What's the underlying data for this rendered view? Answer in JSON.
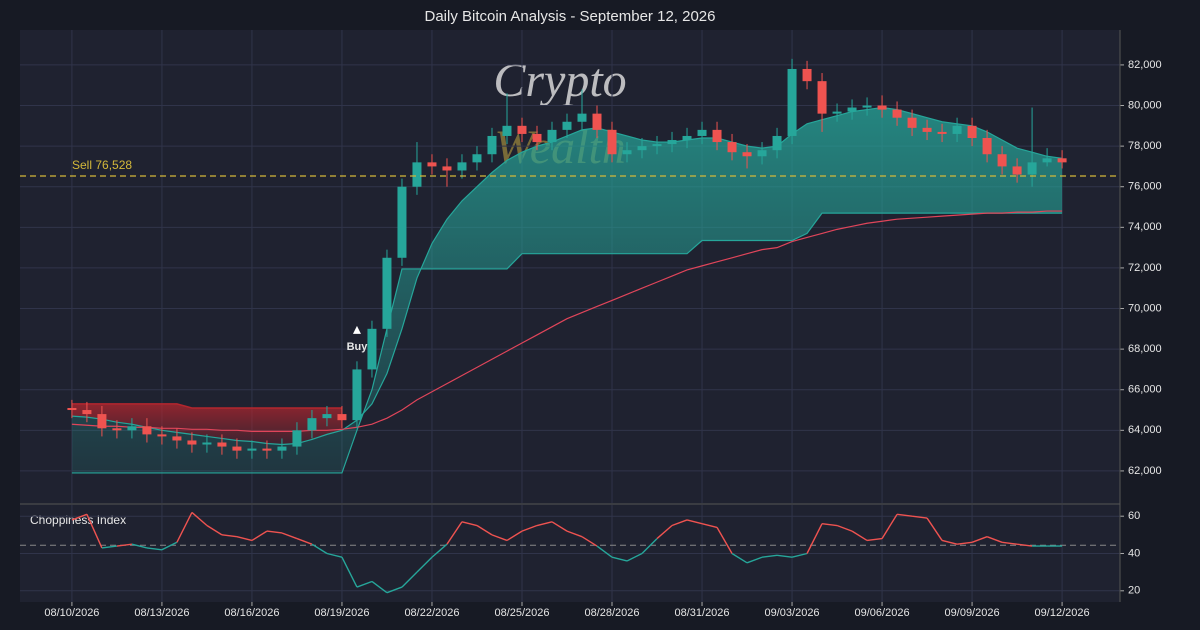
{
  "chart_data": [
    {
      "type": "candlestick",
      "title": "Daily Bitcoin Analysis - September 12, 2026",
      "watermark": [
        "Crypto",
        "Wealth"
      ],
      "up_color": "#26a69a",
      "down_color": "#ef5350",
      "x": [
        0,
        0.5,
        1,
        1.5,
        2,
        2.5,
        3,
        3.5,
        4,
        4.5,
        5,
        5.5,
        6,
        6.5,
        7,
        7.5,
        8,
        8.5,
        9,
        9.5,
        10,
        10.5,
        11,
        11.5,
        12,
        12.5,
        13,
        13.5,
        14,
        14.5,
        15,
        15.5,
        16,
        16.5,
        17,
        17.5,
        18,
        18.5,
        19,
        19.5,
        20,
        20.5,
        21,
        21.5,
        22,
        22.5,
        23,
        23.5,
        24,
        24.5,
        25,
        25.5,
        26,
        26.5,
        27,
        27.5,
        28,
        28.5,
        29,
        29.5,
        30,
        30.5,
        31,
        31.5,
        32,
        32.5,
        33
      ],
      "open": [
        65100,
        65000,
        64800,
        64100,
        64000,
        64200,
        63800,
        63700,
        63500,
        63300,
        63400,
        63200,
        63000,
        63100,
        63000,
        63200,
        64000,
        64600,
        64800,
        64500,
        67000,
        69000,
        72500,
        76000,
        77200,
        77000,
        76800,
        77200,
        77600,
        78500,
        79000,
        78600,
        78200,
        78800,
        79200,
        79600,
        78800,
        77600,
        77800,
        78000,
        78100,
        78300,
        78500,
        78800,
        78200,
        77700,
        77500,
        77800,
        78500,
        81800,
        81200,
        79600,
        79700,
        79900,
        80000,
        79800,
        79400,
        78900,
        78700,
        78600,
        79000,
        78400,
        77600,
        77000,
        76600,
        77200,
        77400
      ],
      "high": [
        65500,
        65400,
        65200,
        64500,
        64600,
        64600,
        64200,
        64100,
        63900,
        63800,
        63800,
        63600,
        63500,
        63500,
        63600,
        64400,
        65000,
        65200,
        65200,
        67400,
        69400,
        72900,
        76400,
        78200,
        77600,
        77400,
        77600,
        78000,
        78900,
        80600,
        79400,
        79000,
        79200,
        79600,
        80800,
        80000,
        79200,
        78200,
        78400,
        78500,
        78700,
        78900,
        79200,
        79200,
        78600,
        78100,
        78200,
        78900,
        82300,
        82200,
        81600,
        80100,
        80300,
        80400,
        80500,
        80200,
        79800,
        79300,
        79100,
        79400,
        79400,
        78800,
        78000,
        77400,
        79900,
        77900,
        77800
      ],
      "low": [
        64600,
        64400,
        63700,
        63600,
        63600,
        63400,
        63300,
        63100,
        62900,
        62900,
        62800,
        62600,
        62600,
        62600,
        62600,
        62800,
        63600,
        64200,
        64100,
        64100,
        66600,
        68600,
        72100,
        75600,
        76600,
        76000,
        76400,
        76800,
        77200,
        78100,
        78200,
        77800,
        77800,
        78400,
        78800,
        78400,
        77200,
        77200,
        77400,
        77600,
        77700,
        77900,
        78100,
        77800,
        77300,
        76900,
        77100,
        77400,
        78100,
        80800,
        78700,
        79200,
        79300,
        79500,
        79400,
        79000,
        78500,
        78300,
        78200,
        78200,
        78000,
        77200,
        76600,
        76200,
        76000,
        77000,
        76900
      ],
      "close": [
        65000,
        64800,
        64100,
        64000,
        64200,
        63800,
        63700,
        63500,
        63300,
        63400,
        63200,
        63000,
        63100,
        63000,
        63200,
        64000,
        64600,
        64800,
        64500,
        67000,
        69000,
        72500,
        76000,
        77200,
        77000,
        76800,
        77200,
        77600,
        78500,
        79000,
        78600,
        78200,
        78800,
        79200,
        79600,
        78800,
        77600,
        77800,
        78000,
        78100,
        78300,
        78500,
        78800,
        78200,
        77700,
        77500,
        77800,
        78500,
        81800,
        81200,
        79600,
        79700,
        79900,
        80000,
        79800,
        79400,
        78900,
        78700,
        78600,
        79000,
        78400,
        77600,
        77000,
        76600,
        77200,
        77400,
        77200
      ],
      "fast_ma": {
        "color": "#26a69a",
        "values": [
          64700,
          64650,
          64550,
          64400,
          64300,
          64150,
          64000,
          63900,
          63800,
          63700,
          63600,
          63500,
          63450,
          63350,
          63300,
          63350,
          63550,
          63800,
          64000,
          64500,
          65300,
          66800,
          69000,
          71500,
          73200,
          74400,
          75300,
          76000,
          76700,
          77300,
          77700,
          78000,
          78200,
          78500,
          78800,
          78900,
          78700,
          78500,
          78300,
          78200,
          78200,
          78300,
          78400,
          78400,
          78200,
          78000,
          77900,
          78000,
          78600,
          79100,
          79300,
          79500,
          79700,
          79800,
          79900,
          79800,
          79600,
          79400,
          79200,
          79100,
          79000,
          78700,
          78300,
          77900,
          77700,
          77500,
          77400
        ]
      },
      "slow_ma": {
        "color": "#e0455a",
        "values": [
          64300,
          64250,
          64200,
          64200,
          64150,
          64150,
          64100,
          64100,
          64050,
          64050,
          64000,
          64000,
          63950,
          63950,
          63950,
          63950,
          64000,
          64000,
          64050,
          64150,
          64300,
          64600,
          65000,
          65500,
          65900,
          66300,
          66700,
          67100,
          67500,
          67900,
          68300,
          68700,
          69100,
          69500,
          69800,
          70100,
          70400,
          70700,
          71000,
          71300,
          71600,
          71900,
          72100,
          72300,
          72500,
          72700,
          72900,
          73000,
          73300,
          73500,
          73700,
          73900,
          74050,
          74200,
          74300,
          74400,
          74450,
          74500,
          74550,
          74600,
          74650,
          74700,
          74700,
          74750,
          74750,
          74800,
          74800
        ]
      },
      "support": {
        "color": "#26a69a",
        "values": [
          61900,
          61900,
          61900,
          61900,
          61900,
          61900,
          61900,
          61900,
          61900,
          61900,
          61900,
          61900,
          61900,
          61900,
          61900,
          61900,
          61900,
          61900,
          61900,
          64000,
          66000,
          69000,
          71950,
          71950,
          71950,
          71950,
          71950,
          71950,
          71950,
          71950,
          72700,
          72700,
          72700,
          72700,
          72700,
          72700,
          72700,
          72700,
          72700,
          72700,
          72700,
          72700,
          73350,
          73350,
          73350,
          73350,
          73350,
          73350,
          73350,
          73700,
          74700,
          74700,
          74700,
          74700,
          74700,
          74700,
          74700,
          74700,
          74700,
          74700,
          74700,
          74700,
          74700,
          74700,
          74700,
          74700,
          74700
        ]
      },
      "resistance": {
        "color": "#b3262e",
        "values": [
          65300,
          65300,
          65300,
          65300,
          65300,
          65300,
          65300,
          65300,
          65100,
          65100,
          65100,
          65100,
          65100,
          65100,
          65100,
          65100,
          65100,
          65100,
          65100,
          null,
          null,
          null,
          null,
          null,
          null,
          null,
          null,
          null,
          null,
          null,
          null,
          null,
          null,
          null,
          null,
          null,
          null,
          null,
          null,
          null,
          null,
          null,
          null,
          null,
          null,
          null,
          null,
          null,
          null,
          null,
          null,
          null,
          null,
          null,
          null,
          null,
          null,
          null,
          null,
          null,
          null,
          null,
          null,
          null,
          null,
          null,
          null
        ]
      },
      "sell_line": {
        "label": "Sell 76,528",
        "value": 76528,
        "color": "#d4b93a"
      },
      "buy_marker": {
        "label": "Buy",
        "x": 9.5,
        "y": 68900
      },
      "xlim": [
        -1.73,
        34.93
      ],
      "xticks": [
        0,
        3,
        6,
        9,
        12,
        15,
        18,
        21,
        24,
        27,
        30,
        33
      ],
      "ylim": [
        60420,
        83720
      ],
      "yticks": [
        {
          "value": 62000,
          "label": "62,000"
        },
        {
          "value": 64000,
          "label": "64,000"
        },
        {
          "value": 66000,
          "label": "66,000"
        },
        {
          "value": 68000,
          "label": "68,000"
        },
        {
          "value": 70000,
          "label": "70,000"
        },
        {
          "value": 72000,
          "label": "72,000"
        },
        {
          "value": 74000,
          "label": "74,000"
        },
        {
          "value": 76000,
          "label": "76,000"
        },
        {
          "value": 78000,
          "label": "78,000"
        },
        {
          "value": 80000,
          "label": "80,000"
        },
        {
          "value": 82000,
          "label": "82,000"
        }
      ],
      "grid": true
    },
    {
      "type": "line",
      "title": "Choppiness Index",
      "above_color": "#ef5350",
      "below_color": "#26a69a",
      "x": [
        0,
        0.5,
        1,
        1.5,
        2,
        2.5,
        3,
        3.5,
        4,
        4.5,
        5,
        5.5,
        6,
        6.5,
        7,
        7.5,
        8,
        8.5,
        9,
        9.5,
        10,
        10.5,
        11,
        11.5,
        12,
        12.5,
        13,
        13.5,
        14,
        14.5,
        15,
        15.5,
        16,
        16.5,
        17,
        17.5,
        18,
        18.5,
        19,
        19.5,
        20,
        20.5,
        21,
        21.5,
        22,
        22.5,
        23,
        23.5,
        24,
        24.5,
        25,
        25.5,
        26,
        26.5,
        27,
        27.5,
        28,
        28.5,
        29,
        29.5,
        30,
        30.5,
        31,
        31.5,
        32,
        32.5,
        33
      ],
      "values": [
        58,
        61,
        43,
        44,
        45,
        43,
        42,
        46,
        62,
        55,
        50,
        49,
        47,
        52,
        51,
        48,
        45,
        40,
        38,
        22,
        25,
        19,
        22,
        30,
        38,
        45,
        57,
        55,
        50,
        47,
        52,
        55,
        57,
        52,
        49,
        44,
        38,
        36,
        40,
        48,
        55,
        58,
        56,
        54,
        40,
        35,
        38,
        39,
        38,
        40,
        56,
        55,
        52,
        47,
        48,
        61,
        60,
        59,
        47,
        45,
        46,
        49,
        46,
        45,
        44,
        44,
        44
      ],
      "threshold": 44.4,
      "xlim": [
        -1.73,
        34.93
      ],
      "xticks": [
        {
          "value": 0,
          "label": "08/10/2026"
        },
        {
          "value": 3,
          "label": "08/13/2026"
        },
        {
          "value": 6,
          "label": "08/16/2026"
        },
        {
          "value": 9,
          "label": "08/19/2026"
        },
        {
          "value": 12,
          "label": "08/22/2026"
        },
        {
          "value": 15,
          "label": "08/25/2026"
        },
        {
          "value": 18,
          "label": "08/28/2026"
        },
        {
          "value": 21,
          "label": "08/31/2026"
        },
        {
          "value": 24,
          "label": "09/03/2026"
        },
        {
          "value": 27,
          "label": "09/06/2026"
        },
        {
          "value": 30,
          "label": "09/09/2026"
        },
        {
          "value": 33,
          "label": "09/12/2026"
        }
      ],
      "ylim": [
        14,
        66
      ],
      "yticks": [
        20,
        40,
        60
      ],
      "grid": true
    }
  ]
}
